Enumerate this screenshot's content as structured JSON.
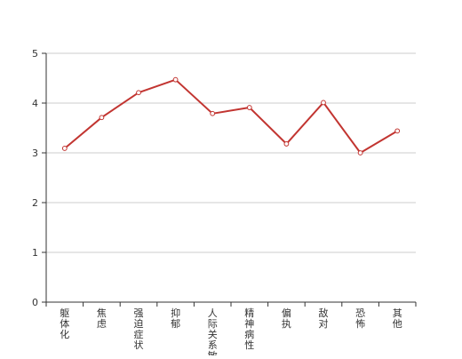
{
  "chart_data": {
    "type": "line",
    "categories": [
      "躯体化",
      "焦虑",
      "强迫症状",
      "抑郁",
      "人际关系敏感",
      "精神病性",
      "偏执",
      "敌对",
      "恐怖",
      "其他"
    ],
    "series": [
      {
        "values": [
          3.09,
          3.71,
          4.21,
          4.47,
          3.79,
          3.91,
          3.18,
          4.01,
          3.0,
          3.44
        ]
      }
    ],
    "yticks": [
      0,
      1,
      2,
      3,
      4,
      5
    ],
    "ylim": [
      0,
      5
    ],
    "grid": true,
    "title": "",
    "xlabel": "",
    "ylabel": "",
    "colors": {
      "line": "#c23531",
      "grid": "#cccccc",
      "axis": "#333333",
      "label": "#333333"
    }
  }
}
